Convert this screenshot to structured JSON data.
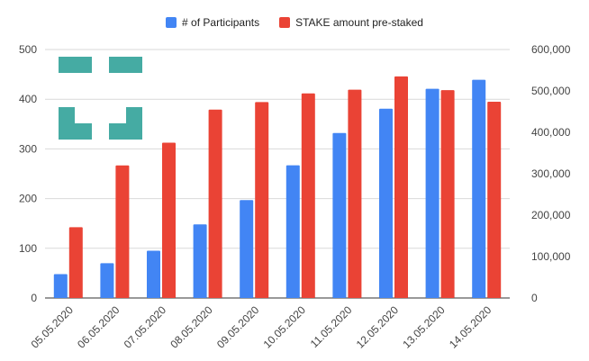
{
  "chart_data": {
    "type": "bar",
    "categories": [
      "05.05.2020",
      "06.05.2020",
      "07.05.2020",
      "08.05.2020",
      "09.05.2020",
      "10.05.2020",
      "11.05.2020",
      "12.05.2020",
      "13.05.2020",
      "14.05.2020"
    ],
    "series": [
      {
        "name": "# of Participants",
        "axis": "left",
        "color": "#4285f4",
        "values": [
          48,
          70,
          95,
          148,
          197,
          267,
          332,
          381,
          421,
          439
        ]
      },
      {
        "name": "STAKE amount pre-staked",
        "axis": "right",
        "color": "#ea4335",
        "values": [
          171000,
          320000,
          375000,
          455000,
          473000,
          494000,
          503000,
          535000,
          502000,
          474000
        ]
      }
    ],
    "left_axis": {
      "ylim": [
        0,
        500
      ],
      "ticks": [
        "0",
        "100",
        "200",
        "300",
        "400",
        "500"
      ]
    },
    "right_axis": {
      "ylim": [
        0,
        600000
      ],
      "ticks": [
        "0",
        "100,000",
        "200,000",
        "300,000",
        "400,000",
        "500,000",
        "600,000"
      ]
    },
    "legend_position": "top",
    "gridlines": true,
    "logo_color": "#45aba3"
  }
}
